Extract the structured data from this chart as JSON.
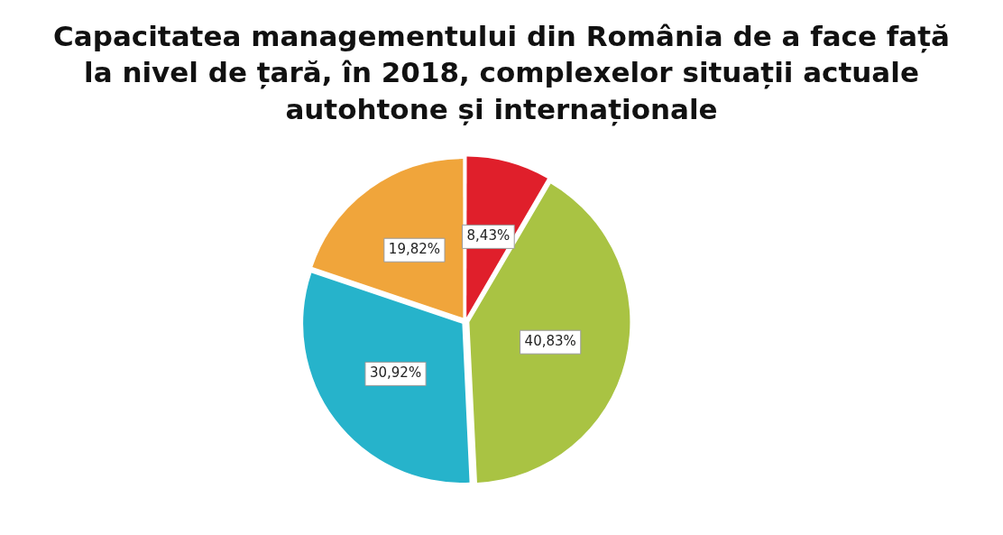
{
  "chart_data": {
    "type": "pie",
    "title": "Capacitatea managementului din România de a face față la nivel de țară, în 2018, complexelor situații actuale autohtone și internaționale",
    "categories": [
      null,
      null,
      null,
      null
    ],
    "values": [
      8.43,
      40.83,
      30.92,
      19.82
    ],
    "colors": [
      "#e01f2b",
      "#a9c343",
      "#26b3cb",
      "#f0a53b"
    ],
    "value_labels": [
      "8,43%",
      "40,83%",
      "30,92%",
      "19,82%"
    ],
    "legend": false
  }
}
